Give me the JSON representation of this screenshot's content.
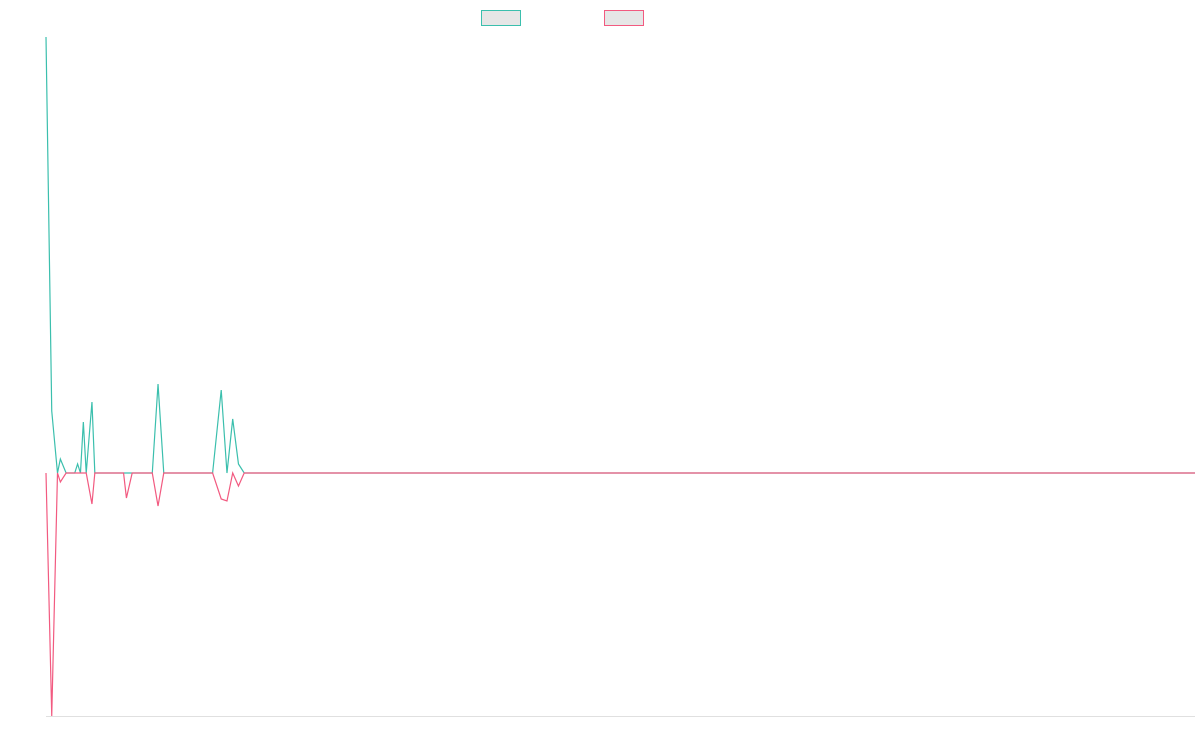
{
  "chart_data": {
    "type": "line",
    "x": [
      0,
      2,
      4,
      5,
      7,
      10,
      11,
      12,
      13,
      14,
      16,
      17,
      20,
      22,
      27,
      28,
      30,
      37,
      39,
      41,
      58,
      61,
      63,
      65,
      67,
      69,
      98,
      400
    ],
    "xlim": [
      0,
      400
    ],
    "ylim": [
      -243,
      436
    ],
    "series": [
      {
        "color": "#3bbfad",
        "values": [
          436,
          62,
          0,
          14,
          0,
          0,
          9,
          0,
          51,
          0,
          71,
          0,
          0,
          0,
          0,
          0,
          0,
          0,
          89,
          0,
          0,
          83,
          0,
          54,
          9,
          0,
          0,
          0
        ]
      },
      {
        "color": "#f25a80",
        "values": [
          0,
          -243,
          0,
          -9,
          0,
          0,
          0,
          0,
          0,
          0,
          -31,
          0,
          0,
          0,
          0,
          -25,
          0,
          0,
          -33,
          0,
          0,
          -26,
          -28,
          0,
          -13,
          0,
          0,
          0
        ]
      }
    ]
  }
}
